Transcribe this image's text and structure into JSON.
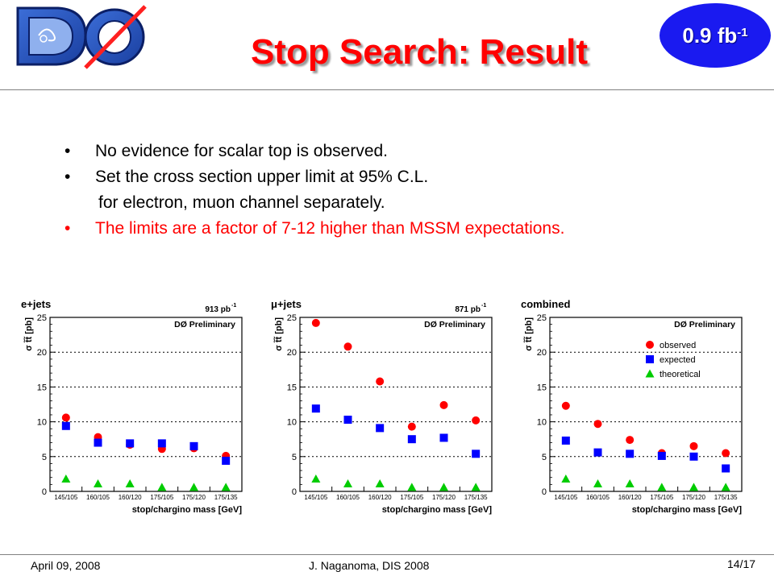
{
  "header": {
    "title": "Stop Search: Result",
    "badge_value": "0.9 fb",
    "badge_exponent": "-1"
  },
  "bullets": [
    {
      "marker": "•",
      "text": "No evidence for scalar top is observed.",
      "color": "#000000"
    },
    {
      "marker": "•",
      "text": "Set the cross section upper limit at 95% C.L.",
      "color": "#000000"
    },
    {
      "marker": "",
      "text": "for electron, muon channel separately.",
      "color": "#000000"
    },
    {
      "marker": "•",
      "text": "The limits are a factor of 7-12 higher than MSSM expectations.",
      "color": "#ff0000"
    }
  ],
  "chart_data": [
    {
      "type": "scatter",
      "title": "e+jets",
      "luminosity": "913 pb",
      "luminosity_exponent": "-1",
      "annotation": "DØ Preliminary",
      "ylabel": "σ t̃t̃ [pb]",
      "xlabel": "stop/chargino mass [GeV]",
      "categories": [
        "145/105",
        "160/105",
        "160/120",
        "175/105",
        "175/120",
        "175/135"
      ],
      "ylim": [
        0,
        25
      ],
      "yticks": [
        "0",
        "5",
        "10",
        "15",
        "20",
        "25"
      ],
      "grid": "horizontal-dotted",
      "series": [
        {
          "name": "observed",
          "marker": "circle",
          "color": "#ff0000",
          "values": [
            10.6,
            7.8,
            6.7,
            6.1,
            6.2,
            5.1
          ]
        },
        {
          "name": "expected",
          "marker": "square",
          "color": "#0000ff",
          "values": [
            9.4,
            7.0,
            6.9,
            6.9,
            6.5,
            4.4
          ]
        },
        {
          "name": "theoretical",
          "marker": "triangle",
          "color": "#00cc00",
          "values": [
            1.8,
            1.1,
            1.1,
            0.6,
            0.6,
            0.6
          ]
        }
      ],
      "legend": null
    },
    {
      "type": "scatter",
      "title": "μ+jets",
      "luminosity": "871 pb",
      "luminosity_exponent": "-1",
      "annotation": "DØ Preliminary",
      "ylabel": "σ t̃t̃ [pb]",
      "xlabel": "stop/chargino mass [GeV]",
      "categories": [
        "145/105",
        "160/105",
        "160/120",
        "175/105",
        "175/120",
        "175/135"
      ],
      "ylim": [
        0,
        25
      ],
      "yticks": [
        "0",
        "5",
        "10",
        "15",
        "20",
        "25"
      ],
      "grid": "horizontal-dotted",
      "series": [
        {
          "name": "observed",
          "marker": "circle",
          "color": "#ff0000",
          "values": [
            24.2,
            20.8,
            15.8,
            9.3,
            12.4,
            10.2
          ]
        },
        {
          "name": "expected",
          "marker": "square",
          "color": "#0000ff",
          "values": [
            11.9,
            10.3,
            9.1,
            7.5,
            7.7,
            5.4
          ]
        },
        {
          "name": "theoretical",
          "marker": "triangle",
          "color": "#00cc00",
          "values": [
            1.8,
            1.1,
            1.1,
            0.6,
            0.6,
            0.6
          ]
        }
      ],
      "legend": null
    },
    {
      "type": "scatter",
      "title": "combined",
      "luminosity": "",
      "luminosity_exponent": "",
      "annotation": "DØ Preliminary",
      "ylabel": "σ t̃t̃ [pb]",
      "xlabel": "stop/chargino mass [GeV]",
      "categories": [
        "145/105",
        "160/105",
        "160/120",
        "175/105",
        "175/120",
        "175/135"
      ],
      "ylim": [
        0,
        25
      ],
      "yticks": [
        "0",
        "5",
        "10",
        "15",
        "20",
        "25"
      ],
      "grid": "horizontal-dotted",
      "series": [
        {
          "name": "observed",
          "marker": "circle",
          "color": "#ff0000",
          "values": [
            12.3,
            9.7,
            7.4,
            5.5,
            6.5,
            5.5
          ]
        },
        {
          "name": "expected",
          "marker": "square",
          "color": "#0000ff",
          "values": [
            7.3,
            5.6,
            5.4,
            5.1,
            5.0,
            3.3
          ]
        },
        {
          "name": "theoretical",
          "marker": "triangle",
          "color": "#00cc00",
          "values": [
            1.8,
            1.1,
            1.1,
            0.6,
            0.6,
            0.6
          ]
        }
      ],
      "legend": {
        "placement": "top-right",
        "entries": [
          "observed",
          "expected",
          "theoretical"
        ]
      }
    }
  ],
  "footer": {
    "date": "April 09, 2008",
    "author": "J. Naganoma, DIS 2008",
    "page": "14/17"
  }
}
